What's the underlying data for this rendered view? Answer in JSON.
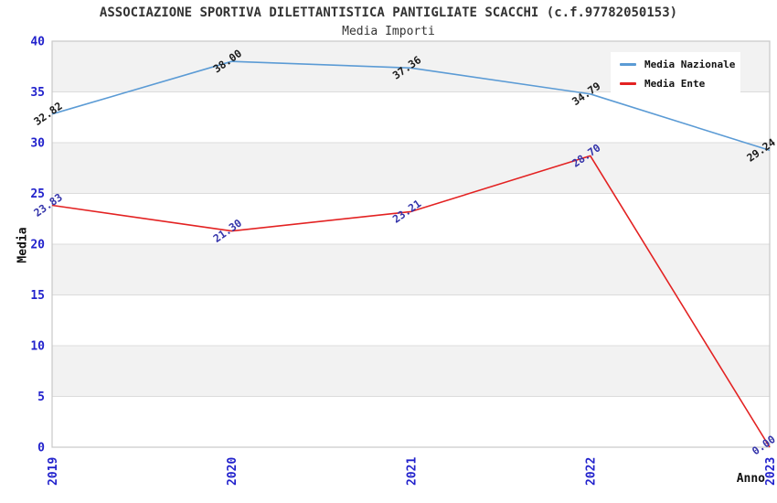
{
  "header": {
    "title": "ASSOCIAZIONE SPORTIVA DILETTANTISTICA PANTIGLIATE SCACCHI (c.f.97782050153)",
    "subtitle": "Media Importi"
  },
  "chart_data": {
    "type": "line",
    "x": [
      "2019",
      "2020",
      "2021",
      "2022",
      "2023"
    ],
    "series": [
      {
        "name": "Media Nazionale",
        "values": [
          32.82,
          38.0,
          37.36,
          34.79,
          29.24
        ],
        "color": "#5b9bd5",
        "point_label_color": "#1a1a1a"
      },
      {
        "name": "Media Ente",
        "values": [
          23.83,
          21.3,
          23.21,
          28.7,
          0.0
        ],
        "color": "#e32222",
        "point_label_color": "#3333aa"
      }
    ],
    "xlabel": "Anno",
    "ylabel": "Media",
    "ylim": [
      0,
      40
    ],
    "yticks": [
      0,
      5,
      10,
      15,
      20,
      25,
      30,
      35,
      40
    ],
    "point_label_decimals": 2,
    "legend_position": "top-right",
    "grid": "horizontal-bands-alternating",
    "colors": {
      "tick_label": "#2222cc",
      "band_fill": "#f2f2f2",
      "grid_line": "#dcdcdc",
      "plot_border": "#c8c8c8",
      "title_text": "#333333"
    }
  }
}
